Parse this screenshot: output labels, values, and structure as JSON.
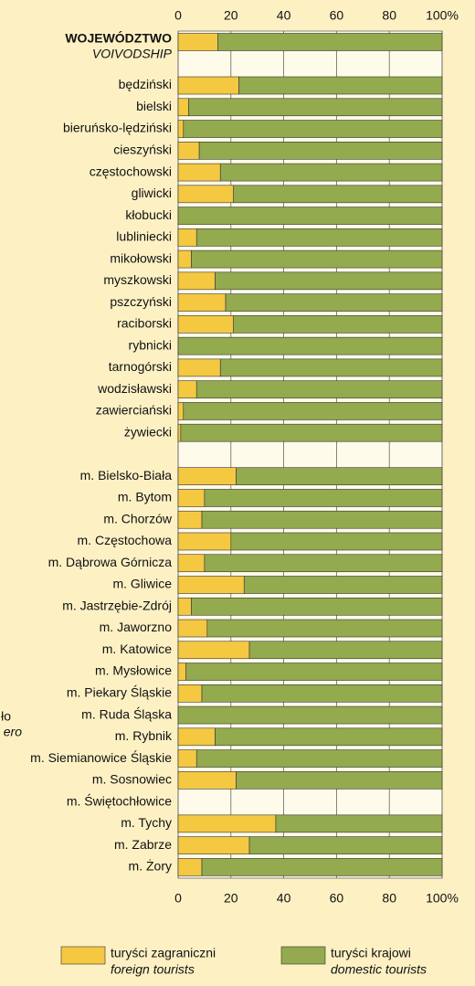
{
  "chart_data": {
    "type": "stacked_barh",
    "categories": [
      "WOJEWÓDZTWO",
      null,
      "będziński",
      "bielski",
      "bieruńsko-lędziński",
      "cieszyński",
      "częstochowski",
      "gliwicki",
      "kłobucki",
      "lubliniecki",
      "mikołowski",
      "myszkowski",
      "pszczyński",
      "raciborski",
      "rybnicki",
      "tarnogórski",
      "wodzisławski",
      "zawierciański",
      "żywiecki",
      null,
      "m. Bielsko-Biała",
      "m. Bytom",
      "m. Chorzów",
      "m. Częstochowa",
      "m. Dąbrowa Górnicza",
      "m. Gliwice",
      "m. Jastrzębie-Zdrój",
      "m. Jaworzno",
      "m. Katowice",
      "m. Mysłowice",
      "m. Piekary Śląskie",
      "m. Ruda Śląska",
      "m. Rybnik",
      "m. Siemianowice Śląskie",
      "m. Sosnowiec",
      "m. Świętochłowice",
      "m. Tychy",
      "m. Zabrze",
      "m. Żory"
    ],
    "category_subtitle": "VOIVODSHIP",
    "annotations": [
      "ło",
      "ero"
    ],
    "series": [
      {
        "name": "turyści zagraniczni",
        "name_en": "foreign tourists",
        "color": "#f5c842",
        "values": [
          15,
          null,
          23,
          4,
          2,
          8,
          16,
          21,
          0,
          7,
          5,
          14,
          18,
          21,
          0,
          16,
          7,
          2,
          1,
          null,
          22,
          10,
          9,
          20,
          10,
          25,
          5,
          11,
          27,
          3,
          9,
          0,
          14,
          7,
          22,
          null,
          37,
          27,
          9
        ]
      },
      {
        "name": "turyści krajowi",
        "name_en": "domestic tourists",
        "color": "#93aa4f",
        "values": [
          85,
          null,
          77,
          96,
          98,
          92,
          84,
          79,
          100,
          93,
          95,
          86,
          82,
          79,
          100,
          84,
          93,
          98,
          99,
          null,
          78,
          90,
          91,
          80,
          90,
          75,
          95,
          89,
          73,
          97,
          91,
          100,
          86,
          93,
          78,
          null,
          63,
          73,
          91
        ]
      }
    ],
    "xlim": [
      0,
      100
    ],
    "xticks": [
      0,
      20,
      40,
      60,
      80,
      {
        "value": 100,
        "label": "100%"
      }
    ],
    "grid": true
  }
}
